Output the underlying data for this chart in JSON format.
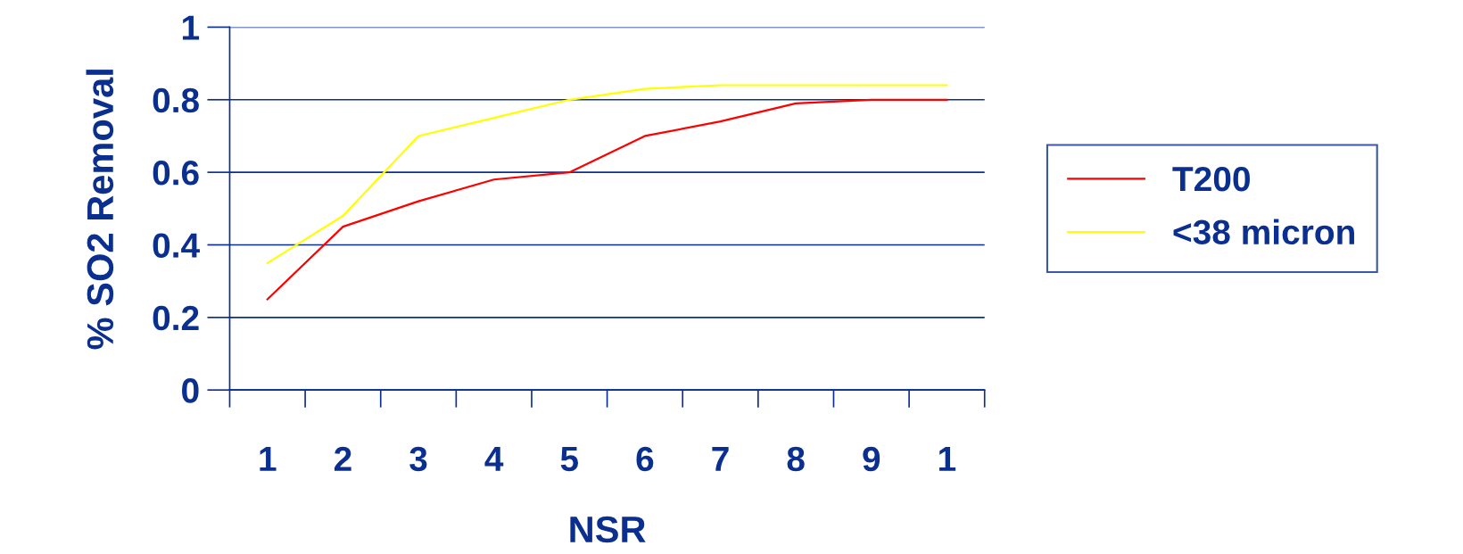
{
  "chart_data": {
    "type": "line",
    "xlabel": "NSR",
    "ylabel": "% SO2 Removal",
    "categories": [
      "1",
      "2",
      "3",
      "4",
      "5",
      "6",
      "7",
      "8",
      "9",
      "1"
    ],
    "series": [
      {
        "name": "T200",
        "color": "#ff0000",
        "values": [
          0.25,
          0.45,
          0.52,
          0.58,
          0.6,
          0.7,
          0.74,
          0.79,
          0.8,
          0.8
        ]
      },
      {
        "name": "<38 micron",
        "color": "#ffff00",
        "values": [
          0.35,
          0.48,
          0.7,
          0.75,
          0.8,
          0.83,
          0.84,
          0.84,
          0.84,
          0.84
        ]
      }
    ],
    "ylim": [
      0,
      1
    ],
    "yticks": [
      0,
      0.2,
      0.4,
      0.6,
      0.8,
      1
    ],
    "grid": "y",
    "legend": "right",
    "marker": "none",
    "line_style": "solid"
  }
}
